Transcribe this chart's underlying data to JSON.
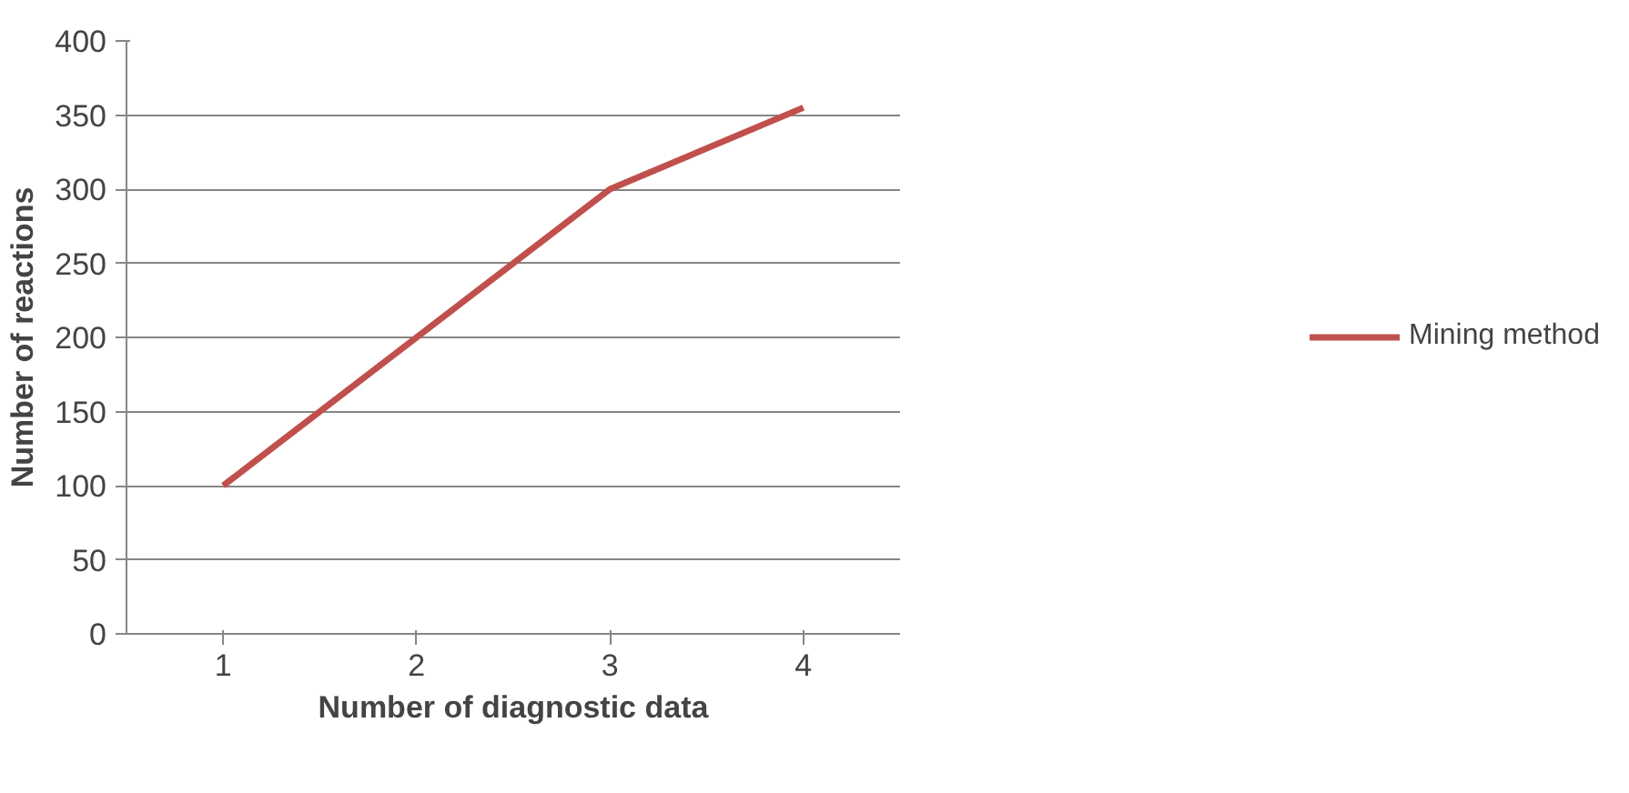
{
  "chart_data": {
    "type": "line",
    "xlabel": "Number of diagnostic data",
    "ylabel": "Number of reactions",
    "categories": [
      "1",
      "2",
      "3",
      "4"
    ],
    "series": [
      {
        "name": "Mining method",
        "color": "#c0504d",
        "values": [
          100,
          200,
          300,
          355
        ]
      }
    ],
    "ylim": [
      0,
      400
    ],
    "yticks": [
      0,
      50,
      100,
      150,
      200,
      250,
      300,
      350,
      400
    ],
    "grid": "y",
    "legend": "right"
  }
}
